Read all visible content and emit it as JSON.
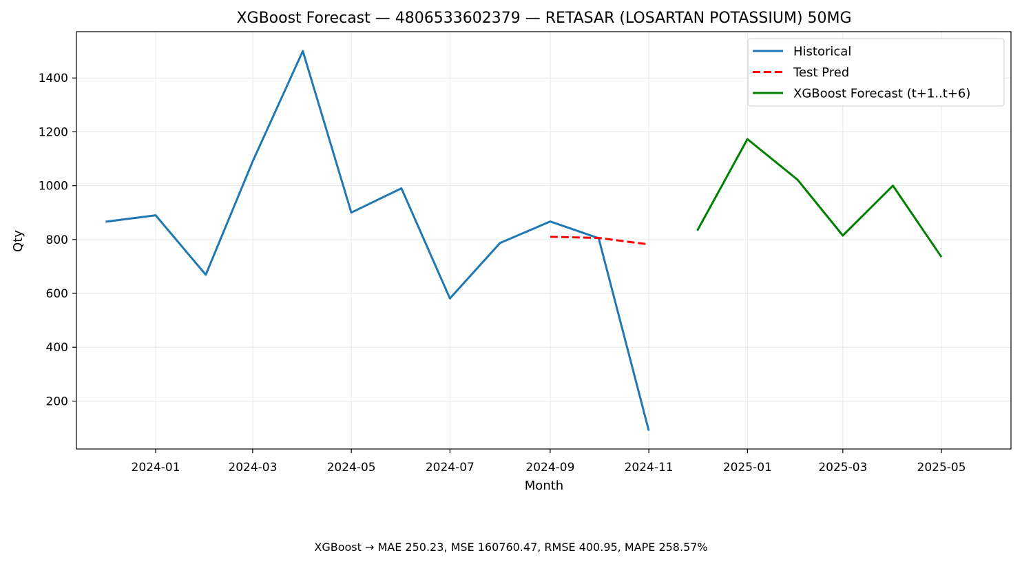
{
  "chart_data": {
    "type": "line",
    "title": "XGBoost Forecast — 4806533602379 — RETASAR (LOSARTAN POTASSIUM) 50MG",
    "xlabel": "Month",
    "ylabel": "Qty",
    "footer": "XGBoost → MAE 250.23, MSE 160760.47, RMSE 400.95, MAPE 258.57%",
    "x_ticks": [
      "2024-01",
      "2024-03",
      "2024-05",
      "2024-07",
      "2024-09",
      "2024-11",
      "2025-01",
      "2025-03",
      "2025-05"
    ],
    "y_ticks": [
      200,
      400,
      600,
      800,
      1000,
      1200,
      1400
    ],
    "xlim": [
      "2023-11-13",
      "2025-06-13"
    ],
    "ylim": [
      22,
      1572
    ],
    "grid": true,
    "legend_position": "top-right",
    "series": [
      {
        "name": "Historical",
        "color": "#1f77b4",
        "style": "solid",
        "x": [
          "2023-12-01",
          "2024-01-01",
          "2024-02-01",
          "2024-03-01",
          "2024-04-01",
          "2024-05-01",
          "2024-06-01",
          "2024-07-01",
          "2024-08-01",
          "2024-09-01",
          "2024-10-01",
          "2024-11-01"
        ],
        "values": [
          866,
          890,
          669,
          1090,
          1500,
          900,
          990,
          581,
          787,
          867,
          805,
          90
        ]
      },
      {
        "name": "Test Pred",
        "color": "#ff0000",
        "style": "dashed",
        "x": [
          "2024-09-01",
          "2024-10-01",
          "2024-11-01"
        ],
        "values": [
          810,
          806,
          782
        ]
      },
      {
        "name": "XGBoost Forecast (t+1..t+6)",
        "color": "#008000",
        "style": "solid",
        "x": [
          "2024-12-01",
          "2025-01-01",
          "2025-02-01",
          "2025-03-01",
          "2025-04-01",
          "2025-05-01"
        ],
        "values": [
          833,
          1173,
          1022,
          815,
          1000,
          735
        ]
      }
    ]
  }
}
